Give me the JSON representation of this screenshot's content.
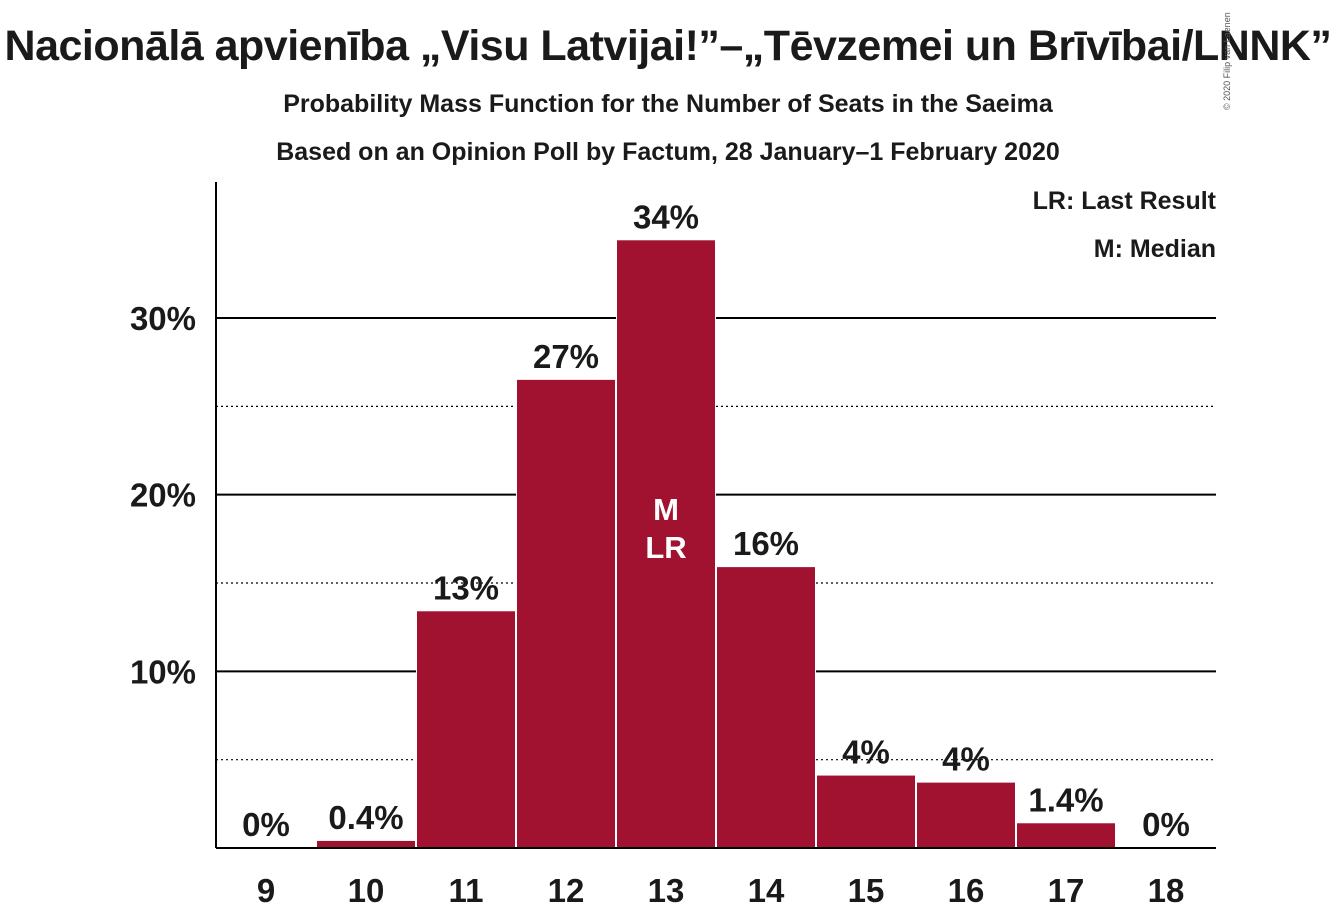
{
  "title": "Nacionālā apvienība „Visu Latvijai!”–„Tēvzemei un Brīvībai/LNNK”",
  "subtitle": "Probability Mass Function for the Number of Seats in the Saeima",
  "subtitle2": "Based on an Opinion Poll by Factum, 28 January–1 February 2020",
  "copyright": "© 2020 Filip van Laenen",
  "legend": {
    "last_result": "LR: Last Result",
    "median": "M: Median"
  },
  "colors": {
    "bar": "#a0122f",
    "axis": "#000000",
    "text": "#1a1a1a"
  },
  "chart_data": {
    "type": "bar",
    "categories": [
      "9",
      "10",
      "11",
      "12",
      "13",
      "14",
      "15",
      "16",
      "17",
      "18"
    ],
    "values": [
      0,
      0.4,
      13.4,
      26.5,
      34.4,
      15.9,
      4.1,
      3.7,
      1.4,
      0
    ],
    "value_labels": [
      "0%",
      "0.4%",
      "13%",
      "27%",
      "34%",
      "16%",
      "4%",
      "4%",
      "1.4%",
      "0%"
    ],
    "ylim": [
      0,
      37.7
    ],
    "yticks": [
      10,
      20,
      30
    ],
    "ytick_labels": [
      "10%",
      "20%",
      "30%"
    ],
    "minor_gridlines": [
      5,
      15,
      25
    ],
    "grid": true,
    "legend_position": "top-right",
    "median_category": "13",
    "median_marker": "M",
    "last_result_category": "13",
    "last_result_marker": "LR"
  }
}
